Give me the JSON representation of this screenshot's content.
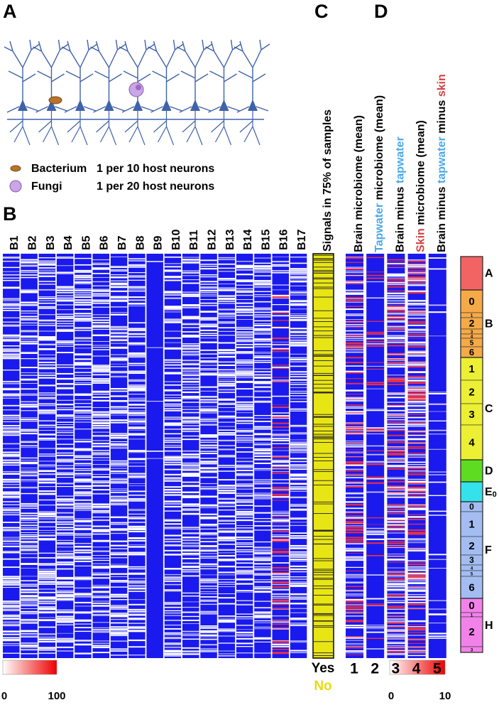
{
  "panels": [
    "A",
    "B",
    "C",
    "D"
  ],
  "panel_a": {
    "legend": [
      {
        "name": "Bacterium",
        "ratio": "1 per 10 host neurons"
      },
      {
        "name": "Fungi",
        "ratio": "1 per 20 host neurons"
      }
    ]
  },
  "panel_b": {
    "columns": [
      "B1",
      "B2",
      "B3",
      "B4",
      "B5",
      "B6",
      "B7",
      "B8",
      "B9",
      "B10",
      "B11",
      "B12",
      "B13",
      "B14",
      "B15",
      "B16",
      "B17"
    ],
    "colorbar": {
      "min": 0,
      "max": 100
    }
  },
  "panel_c": {
    "label": "Signals in 75% of samples",
    "yes": "Yes",
    "no": "No"
  },
  "panel_d": {
    "columns": [
      {
        "number": 1,
        "label": [
          {
            "text": "Brain microbiome (mean)",
            "color": "#000000"
          }
        ]
      },
      {
        "number": 2,
        "label": [
          {
            "text": "Tapwater",
            "color": "#4aa8e8"
          },
          {
            "text": " microbiome (mean)",
            "color": "#000000"
          }
        ]
      },
      {
        "number": 3,
        "label": [
          {
            "text": "Brain minus ",
            "color": "#000000"
          },
          {
            "text": "tapwater",
            "color": "#4aa8e8"
          }
        ]
      },
      {
        "number": 4,
        "label": [
          {
            "text": "Skin",
            "color": "#d04040"
          },
          {
            "text": " microbiome (mean)",
            "color": "#000000"
          }
        ]
      },
      {
        "number": 5,
        "label": [
          {
            "text": "Brain minus ",
            "color": "#000000"
          },
          {
            "text": "tapwater",
            "color": "#4aa8e8"
          },
          {
            "text": " minus ",
            "color": "#000000"
          },
          {
            "text": "skin",
            "color": "#d04040"
          }
        ]
      }
    ],
    "colorbar": {
      "min": 0,
      "max": 10
    }
  },
  "groups": [
    {
      "name": "A",
      "color": "#f26464",
      "subs": []
    },
    {
      "name": "B",
      "color": "#f5aa48",
      "subs": [
        "0",
        "1",
        "2",
        "3",
        "4",
        "5",
        "6"
      ]
    },
    {
      "name": "C",
      "color": "#ecef33",
      "subs": [
        "1",
        "2",
        "3",
        "4"
      ]
    },
    {
      "name": "D",
      "color": "#5ddc22",
      "subs": []
    },
    {
      "name": "E",
      "sub_label": "0",
      "color": "#33e2ea",
      "subs": []
    },
    {
      "name": "F",
      "color": "#a3bdf2",
      "subs": [
        "0",
        "1",
        "2",
        "3",
        "4",
        "5",
        "6"
      ]
    },
    {
      "name": "H",
      "color": "#f282ea",
      "subs": [
        "0",
        "1",
        "2",
        "3"
      ]
    }
  ]
}
